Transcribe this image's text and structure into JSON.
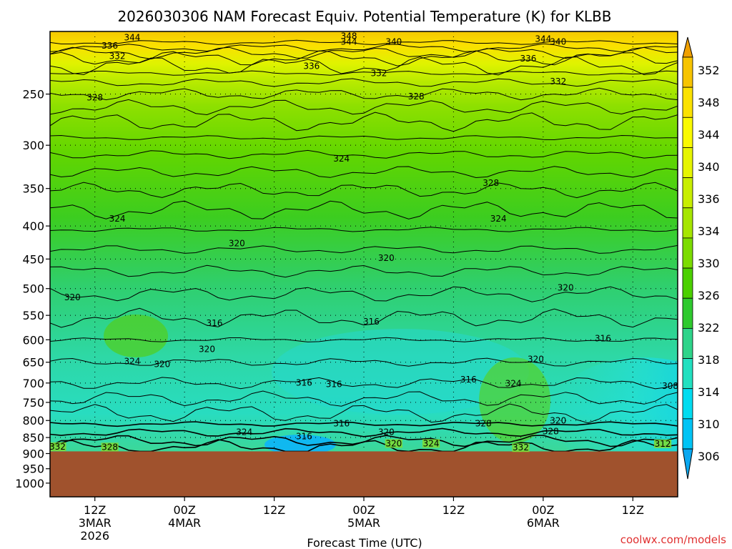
{
  "title": "2026030306 NAM Forecast Equiv. Potential Temperature (K) for KLBB",
  "watermark": "coolwx.com/models",
  "chart_data": {
    "type": "heatmap",
    "title": "2026030306 NAM Forecast Equiv. Potential Temperature (K) for KLBB",
    "xlabel": "Forecast Time (UTC)",
    "ylabel": "",
    "x_ticks": [
      {
        "lines": [
          "12Z",
          "3MAR",
          "2026"
        ],
        "hour": 6
      },
      {
        "lines": [
          "00Z",
          "4MAR"
        ],
        "hour": 18
      },
      {
        "lines": [
          "12Z"
        ],
        "hour": 30
      },
      {
        "lines": [
          "00Z",
          "5MAR"
        ],
        "hour": 42
      },
      {
        "lines": [
          "12Z"
        ],
        "hour": 54
      },
      {
        "lines": [
          "00Z",
          "6MAR"
        ],
        "hour": 66
      },
      {
        "lines": [
          "12Z"
        ],
        "hour": 78
      }
    ],
    "x_range_hours": [
      0,
      84
    ],
    "y_ticks": [
      250,
      300,
      350,
      400,
      450,
      500,
      550,
      600,
      650,
      700,
      750,
      800,
      850,
      900,
      950,
      1000
    ],
    "y_range_hPa": [
      200,
      1050
    ],
    "y_scale": "log",
    "surface_pressure_hPa": 893,
    "surface_color": "#a0522d",
    "colorbar": {
      "ticks": [
        352,
        348,
        344,
        340,
        336,
        334,
        330,
        326,
        322,
        318,
        314,
        310,
        306
      ],
      "colors": [
        "#f0a000",
        "#f7c400",
        "#fbe200",
        "#fafa00",
        "#e6f500",
        "#c8ee00",
        "#a6e600",
        "#7cdc00",
        "#4cd000",
        "#2fca2f",
        "#2ed48a",
        "#22e0c0",
        "#00dcf0",
        "#00c4f5",
        "#0aa8f0"
      ]
    },
    "contour_levels": [
      {
        "value": 348,
        "hour": 40,
        "hPa": 205
      },
      {
        "value": 344,
        "hour": 11,
        "hPa": 206
      },
      {
        "value": 344,
        "hour": 40,
        "hPa": 209
      },
      {
        "value": 344,
        "hour": 66,
        "hPa": 207
      },
      {
        "value": 340,
        "hour": 46,
        "hPa": 209
      },
      {
        "value": 340,
        "hour": 68,
        "hPa": 209
      },
      {
        "value": 336,
        "hour": 8,
        "hPa": 212
      },
      {
        "value": 336,
        "hour": 35,
        "hPa": 228
      },
      {
        "value": 336,
        "hour": 64,
        "hPa": 222
      },
      {
        "value": 332,
        "hour": 9,
        "hPa": 220
      },
      {
        "value": 332,
        "hour": 44,
        "hPa": 234
      },
      {
        "value": 332,
        "hour": 68,
        "hPa": 241
      },
      {
        "value": 328,
        "hour": 6,
        "hPa": 255
      },
      {
        "value": 328,
        "hour": 49,
        "hPa": 254
      },
      {
        "value": 328,
        "hour": 59,
        "hPa": 346
      },
      {
        "value": 324,
        "hour": 39,
        "hPa": 317
      },
      {
        "value": 324,
        "hour": 9,
        "hPa": 393
      },
      {
        "value": 324,
        "hour": 60,
        "hPa": 393
      },
      {
        "value": 320,
        "hour": 25,
        "hPa": 429
      },
      {
        "value": 320,
        "hour": 45,
        "hPa": 452
      },
      {
        "value": 320,
        "hour": 3,
        "hPa": 520
      },
      {
        "value": 320,
        "hour": 69,
        "hPa": 502
      },
      {
        "value": 316,
        "hour": 22,
        "hPa": 570
      },
      {
        "value": 316,
        "hour": 43,
        "hPa": 567
      },
      {
        "value": 316,
        "hour": 74,
        "hPa": 602
      },
      {
        "value": 324,
        "hour": 11,
        "hPa": 653
      },
      {
        "value": 320,
        "hour": 15,
        "hPa": 660
      },
      {
        "value": 320,
        "hour": 21,
        "hPa": 625
      },
      {
        "value": 320,
        "hour": 65,
        "hPa": 648
      },
      {
        "value": 316,
        "hour": 34,
        "hPa": 705
      },
      {
        "value": 316,
        "hour": 38,
        "hPa": 708
      },
      {
        "value": 316,
        "hour": 56,
        "hPa": 697
      },
      {
        "value": 324,
        "hour": 62,
        "hPa": 707
      },
      {
        "value": 308,
        "hour": 83,
        "hPa": 713
      },
      {
        "value": 316,
        "hour": 39,
        "hPa": 815
      },
      {
        "value": 328,
        "hour": 58,
        "hPa": 815
      },
      {
        "value": 320,
        "hour": 68,
        "hPa": 807
      },
      {
        "value": 324,
        "hour": 26,
        "hPa": 840
      },
      {
        "value": 320,
        "hour": 45,
        "hPa": 840
      },
      {
        "value": 328,
        "hour": 67,
        "hPa": 838
      },
      {
        "value": 316,
        "hour": 34,
        "hPa": 853
      },
      {
        "value": 320,
        "hour": 46,
        "hPa": 875
      },
      {
        "value": 324,
        "hour": 51,
        "hPa": 875
      },
      {
        "value": 332,
        "hour": 63,
        "hPa": 888
      },
      {
        "value": 332,
        "hour": 1,
        "hPa": 885
      },
      {
        "value": 328,
        "hour": 8,
        "hPa": 886
      },
      {
        "value": 312,
        "hour": 82,
        "hPa": 876
      }
    ]
  }
}
